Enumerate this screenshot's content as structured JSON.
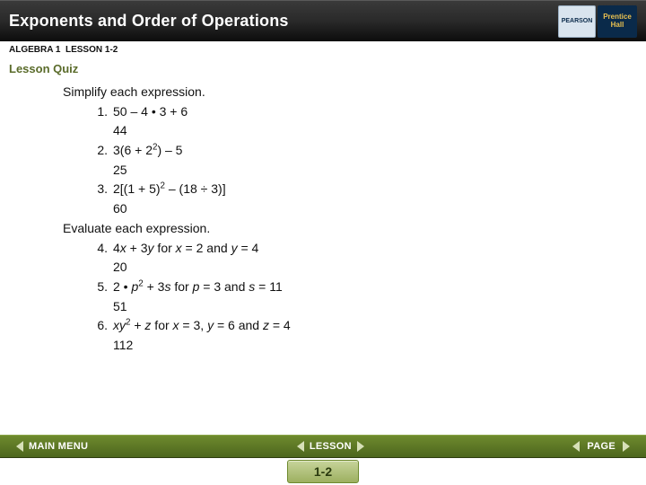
{
  "header": {
    "title": "Exponents and Order of Operations",
    "course": "ALGEBRA 1",
    "lesson_code": "LESSON 1-2",
    "quiz_label": "Lesson Quiz",
    "logo_left": "PEARSON",
    "logo_right_line1": "Prentice",
    "logo_right_line2": "Hall"
  },
  "content": {
    "section1_heading": "Simplify each expression.",
    "items1": [
      {
        "n": "1.",
        "expr": "50 – 4 • 3 + 6",
        "answer": "44"
      },
      {
        "n": "2.",
        "expr_html": "3(6 + 2<sup>2</sup>) – 5",
        "answer": "25"
      },
      {
        "n": "3.",
        "expr_html": "2[(1 + 5)<sup>2</sup> – (18 ÷ 3)]",
        "answer": "60"
      }
    ],
    "section2_heading": "Evaluate each expression.",
    "items2": [
      {
        "n": "4.",
        "expr_html": "4<span class=\"fvar\">x</span> + 3<span class=\"fvar\">y</span> for <span class=\"fvar\">x</span> = 2 and <span class=\"fvar\">y</span> = 4",
        "answer": "20"
      },
      {
        "n": "5.",
        "expr_html": "2 • <span class=\"fvar\">p</span><sup>2</sup> + 3<span class=\"fvar\">s</span> for <span class=\"fvar\">p</span> = 3 and <span class=\"fvar\">s</span> = 11",
        "answer": "51"
      },
      {
        "n": "6.",
        "expr_html": "<span class=\"fvar\">xy</span><sup>2</sup> + <span class=\"fvar\">z</span> for <span class=\"fvar\">x</span> = 3, <span class=\"fvar\">y</span> = 6 and <span class=\"fvar\">z</span> = 4",
        "answer": "112"
      }
    ]
  },
  "footer": {
    "main_menu": "MAIN MENU",
    "lesson": "LESSON",
    "page": "PAGE",
    "page_num": "1-2"
  },
  "colors": {
    "header_bg": "#2a2a2a",
    "footer_bg": "#5a7524",
    "quiz_text": "#5a6b2a",
    "badge_bg": "#b0c278"
  }
}
